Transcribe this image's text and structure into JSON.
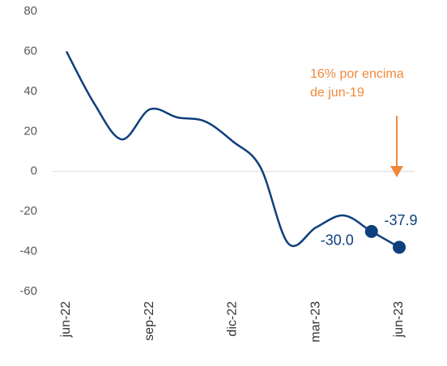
{
  "chart_data": {
    "type": "line",
    "categories": [
      "jun-22",
      null,
      null,
      "sep-22",
      null,
      null,
      "dic-22",
      null,
      null,
      "mar-23",
      null,
      null,
      "jun-23"
    ],
    "series": [
      {
        "color": "#0f3f7c",
        "values": [
          60,
          34,
          16,
          31,
          27,
          25,
          15,
          2,
          -36,
          -28,
          -22,
          -30.0,
          -37.9
        ],
        "value_labels": [
          null,
          null,
          null,
          null,
          null,
          null,
          null,
          null,
          null,
          null,
          null,
          "-30.0",
          "-37.9"
        ]
      }
    ],
    "ylim": [
      -60,
      80
    ],
    "yticks": [
      -60,
      -40,
      -20,
      0,
      20,
      40,
      60,
      80
    ],
    "annotation": {
      "lines": [
        "16% por encima",
        "de jun-19"
      ],
      "color": "#f0883a"
    }
  }
}
